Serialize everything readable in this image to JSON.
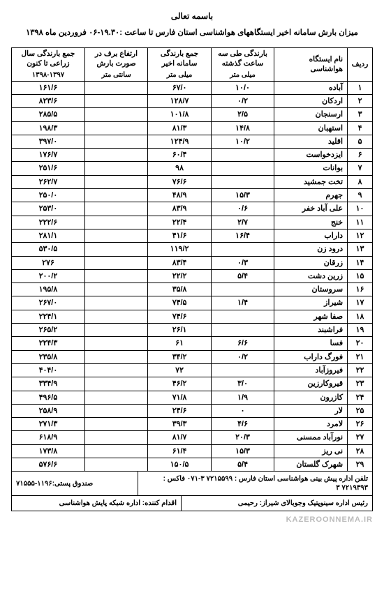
{
  "header": {
    "bismillah": "باسمه تعالی",
    "subtitle": "میزان بارش سامانه اخیر ایستگاههای هواشناسی استان فارس تا ساعت :۱۹.۳۰-۰۶ فروردین ماه ۱۳۹۸"
  },
  "columns": {
    "idx": "ردیف",
    "station": "نام ایستگاه\nهواشناسی",
    "rain3h": "بارندگی طی سه\nساعت گذشته",
    "rain3h_unit": "میلی متر",
    "rain_sys": "جمع بارندگی\nسامانه اخیر",
    "rain_sys_unit": "میلی متر",
    "snow": "ارتفاع برف در\nصورت بارش",
    "snow_unit": "سانتی متر",
    "year": "جمع بارندگی سال\nزراعی تا کنون",
    "year_unit": "۱۳۹۸-۱۳۹۷"
  },
  "rows": [
    {
      "i": "۱",
      "name": "آباده",
      "r3": "۱۰/۰",
      "sys": "۶۷/۰",
      "snow": "",
      "yr": "۱۶۱/۶"
    },
    {
      "i": "۲",
      "name": "اردکان",
      "r3": "۰/۲",
      "sys": "۱۲۸/۷",
      "snow": "",
      "yr": "۸۲۳/۶"
    },
    {
      "i": "۳",
      "name": "ارسنجان",
      "r3": "۲/۵",
      "sys": "۱۰۱/۸",
      "snow": "",
      "yr": "۲۸۵/۵"
    },
    {
      "i": "۴",
      "name": "استهبان",
      "r3": "۱۴/۸",
      "sys": "۸۱/۳",
      "snow": "",
      "yr": "۱۹۸/۳"
    },
    {
      "i": "۵",
      "name": "اقلید",
      "r3": "۱۰/۲",
      "sys": "۱۲۴/۹",
      "snow": "",
      "yr": "۳۹۷/۰"
    },
    {
      "i": "۶",
      "name": "ایزدخواست",
      "r3": "",
      "sys": "۶۰/۴",
      "snow": "",
      "yr": "۱۷۶/۷"
    },
    {
      "i": "۷",
      "name": "بوانات",
      "r3": "",
      "sys": "۹۸",
      "snow": "",
      "yr": "۲۵۱/۶"
    },
    {
      "i": "۸",
      "name": "تخت جمشید",
      "r3": "",
      "sys": "۷۶/۶",
      "snow": "",
      "yr": "۲۶۲/۷"
    },
    {
      "i": "۹",
      "name": "جهرم",
      "r3": "۱۵/۳",
      "sys": "۴۸/۹",
      "snow": "",
      "yr": "۲۵۰/۰"
    },
    {
      "i": "۱۰",
      "name": "علی آباد خفر",
      "r3": "۰/۶",
      "sys": "۸۳/۹",
      "snow": "",
      "yr": "۲۵۳/۰"
    },
    {
      "i": "۱۱",
      "name": "خنج",
      "r3": "۲/۷",
      "sys": "۲۲/۴",
      "snow": "",
      "yr": "۲۲۲/۶"
    },
    {
      "i": "۱۲",
      "name": "داراب",
      "r3": "۱۶/۴",
      "sys": "۴۱/۶",
      "snow": "",
      "yr": "۲۸۱/۱"
    },
    {
      "i": "۱۳",
      "name": "درود زن",
      "r3": "",
      "sys": "۱۱۹/۲",
      "snow": "",
      "yr": "۵۳۰/۵"
    },
    {
      "i": "۱۴",
      "name": "زرقان",
      "r3": "۰/۳",
      "sys": "۸۳/۴",
      "snow": "",
      "yr": "۲۷۶"
    },
    {
      "i": "۱۵",
      "name": "زرین دشت",
      "r3": "۵/۴",
      "sys": "۲۲/۲",
      "snow": "",
      "yr": "۲۰۰/۲"
    },
    {
      "i": "۱۶",
      "name": "سروستان",
      "r3": "",
      "sys": "۳۵/۸",
      "snow": "",
      "yr": "۱۹۵/۸"
    },
    {
      "i": "۱۷",
      "name": "شیراز",
      "r3": "۱/۴",
      "sys": "۷۴/۵",
      "snow": "",
      "yr": "۲۶۷/۰"
    },
    {
      "i": "۱۸",
      "name": "صفا شهر",
      "r3": "",
      "sys": "۷۴/۶",
      "snow": "",
      "yr": "۲۲۴/۱"
    },
    {
      "i": "۱۹",
      "name": "فراشبند",
      "r3": "",
      "sys": "۲۶/۱",
      "snow": "",
      "yr": "۲۶۵/۲"
    },
    {
      "i": "۲۰",
      "name": "فسا",
      "r3": "۶/۶",
      "sys": "۶۱",
      "snow": "",
      "yr": "۲۲۴/۳"
    },
    {
      "i": "۲۱",
      "name": "فورگ داراب",
      "r3": "۰/۲",
      "sys": "۳۴/۲",
      "snow": "",
      "yr": "۲۳۵/۸"
    },
    {
      "i": "۲۲",
      "name": "فیروزآباد",
      "r3": "",
      "sys": "۷۲",
      "snow": "",
      "yr": "۴۰۴/۰"
    },
    {
      "i": "۲۳",
      "name": "قیروکارزین",
      "r3": "۳/۰",
      "sys": "۴۶/۲",
      "snow": "",
      "yr": "۳۳۴/۹"
    },
    {
      "i": "۲۴",
      "name": "کازرون",
      "r3": "۱/۹",
      "sys": "۷۱/۸",
      "snow": "",
      "yr": "۴۹۶/۵"
    },
    {
      "i": "۲۵",
      "name": "لار",
      "r3": "۰",
      "sys": "۲۴/۶",
      "snow": "",
      "yr": "۲۵۸/۹"
    },
    {
      "i": "۲۶",
      "name": "لامرد",
      "r3": "۴/۶",
      "sys": "۳۹/۳",
      "snow": "",
      "yr": "۲۷۱/۳"
    },
    {
      "i": "۲۷",
      "name": "نورآباد ممسنی",
      "r3": "۲۰/۳",
      "sys": "۸۱/۷",
      "snow": "",
      "yr": "۶۱۸/۹"
    },
    {
      "i": "۲۸",
      "name": "نی ریز",
      "r3": "۱۵/۳",
      "sys": "۶۱/۴",
      "snow": "",
      "yr": "۱۷۳/۸"
    },
    {
      "i": "۲۹",
      "name": "شهرک گلستان",
      "r3": "۵/۴",
      "sys": "۱۵۰/۵",
      "snow": "",
      "yr": "۵۷۶/۶"
    }
  ],
  "footer": {
    "phone": "تلفن اداره پیش بینی هواشناسی استان فارس : ۷۲۱۵۵۹۹ ۳-۰۷۱   فاکس : ۷۲۱۹۳۹۳ ۳",
    "pobox": "صندوق پستی:۱۱۹۶-۷۱۵۵۵",
    "chief": "رئیس اداره سینوپتیک وجوبالای شیراز: رحیمی",
    "action": "اقدام کننده: اداره شبکه پایش هواشناسی",
    "watermark": "KAZEROONNEMA.IR"
  }
}
